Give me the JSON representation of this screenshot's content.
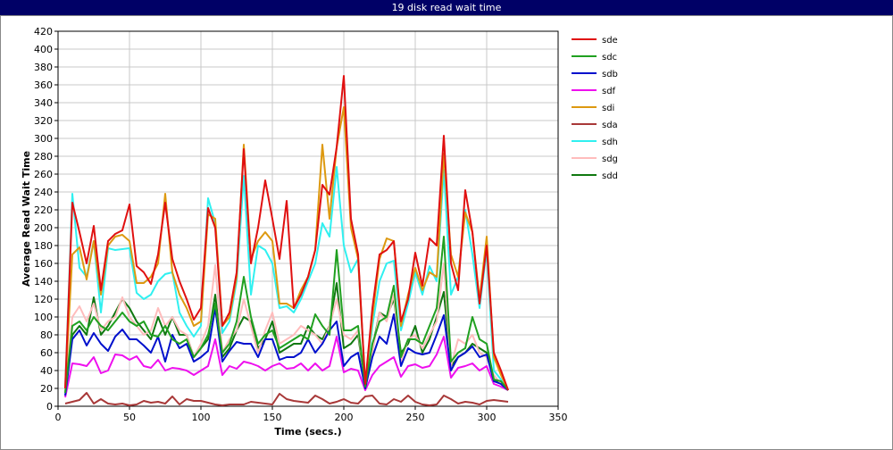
{
  "chart_data": {
    "type": "line",
    "title": "19 disk read wait time",
    "x_label": "Time (secs.)",
    "y_label": "Average Read Wait Time",
    "xlim": [
      0,
      350
    ],
    "xticks": [
      0,
      50,
      100,
      150,
      200,
      250,
      300,
      350
    ],
    "ylim": [
      0,
      420
    ],
    "yticks": [
      0,
      20,
      40,
      60,
      80,
      100,
      120,
      140,
      160,
      180,
      200,
      220,
      240,
      260,
      280,
      300,
      320,
      340,
      360,
      380,
      400,
      420
    ],
    "grid": true,
    "legend": "right",
    "x": [
      5,
      10,
      15,
      20,
      25,
      30,
      35,
      40,
      45,
      50,
      55,
      60,
      65,
      70,
      75,
      80,
      85,
      90,
      95,
      100,
      105,
      110,
      115,
      120,
      125,
      130,
      135,
      140,
      145,
      150,
      155,
      160,
      165,
      170,
      175,
      180,
      185,
      190,
      195,
      200,
      205,
      210,
      215,
      220,
      225,
      230,
      235,
      240,
      245,
      250,
      255,
      260,
      265,
      270,
      275,
      280,
      285,
      290,
      295,
      300,
      305,
      310,
      315
    ],
    "series": [
      {
        "name": "sde",
        "color": "#e01010",
        "values": [
          20,
          228,
          195,
          160,
          202,
          130,
          185,
          193,
          197,
          226,
          157,
          150,
          137,
          170,
          228,
          165,
          140,
          120,
          97,
          110,
          222,
          200,
          90,
          105,
          150,
          288,
          160,
          200,
          253,
          210,
          165,
          230,
          110,
          125,
          145,
          175,
          248,
          237,
          290,
          370,
          210,
          170,
          25,
          110,
          170,
          175,
          185,
          95,
          120,
          172,
          135,
          188,
          180,
          303,
          160,
          130,
          242,
          195,
          115,
          180,
          60,
          40,
          18
        ]
      },
      {
        "name": "sdc",
        "color": "#20a020",
        "values": [
          15,
          90,
          95,
          85,
          100,
          90,
          85,
          95,
          105,
          95,
          90,
          95,
          80,
          78,
          90,
          75,
          70,
          75,
          55,
          65,
          80,
          115,
          60,
          70,
          95,
          145,
          100,
          70,
          80,
          85,
          65,
          70,
          75,
          80,
          75,
          103,
          90,
          80,
          175,
          85,
          85,
          90,
          22,
          70,
          95,
          100,
          135,
          55,
          75,
          75,
          70,
          90,
          110,
          190,
          50,
          60,
          65,
          100,
          75,
          70,
          30,
          28,
          18
        ]
      },
      {
        "name": "sdb",
        "color": "#0010cc",
        "values": [
          12,
          75,
          85,
          68,
          82,
          70,
          62,
          78,
          86,
          75,
          75,
          68,
          60,
          78,
          50,
          80,
          65,
          70,
          50,
          55,
          62,
          110,
          50,
          62,
          72,
          70,
          70,
          55,
          75,
          75,
          52,
          55,
          55,
          60,
          75,
          60,
          70,
          85,
          95,
          45,
          55,
          60,
          20,
          55,
          78,
          70,
          103,
          45,
          65,
          60,
          58,
          60,
          80,
          102,
          40,
          55,
          60,
          67,
          55,
          58,
          28,
          25,
          18
        ]
      },
      {
        "name": "sdf",
        "color": "#ee10ee",
        "values": [
          10,
          48,
          47,
          45,
          55,
          37,
          40,
          58,
          57,
          52,
          56,
          45,
          43,
          52,
          40,
          43,
          42,
          40,
          35,
          40,
          45,
          75,
          35,
          45,
          42,
          50,
          48,
          45,
          40,
          45,
          48,
          42,
          43,
          48,
          40,
          48,
          40,
          45,
          78,
          38,
          42,
          40,
          18,
          35,
          45,
          50,
          55,
          33,
          45,
          47,
          43,
          45,
          58,
          78,
          32,
          43,
          45,
          48,
          40,
          45,
          25,
          22,
          18
        ]
      },
      {
        "name": "sdi",
        "color": "#dd9910",
        "values": [
          20,
          170,
          178,
          142,
          185,
          125,
          180,
          190,
          192,
          185,
          138,
          138,
          145,
          160,
          238,
          150,
          125,
          110,
          90,
          95,
          215,
          210,
          90,
          100,
          145,
          293,
          165,
          185,
          195,
          185,
          115,
          115,
          110,
          130,
          145,
          175,
          293,
          210,
          290,
          335,
          200,
          165,
          25,
          100,
          165,
          188,
          185,
          90,
          125,
          155,
          130,
          150,
          145,
          283,
          170,
          145,
          217,
          195,
          120,
          190,
          55,
          35,
          18
        ]
      },
      {
        "name": "sda",
        "color": "#a83838",
        "values": [
          3,
          5,
          7,
          15,
          3,
          8,
          3,
          2,
          3,
          1,
          2,
          6,
          4,
          5,
          3,
          11,
          2,
          8,
          6,
          6,
          4,
          2,
          1,
          2,
          2,
          2,
          5,
          4,
          3,
          2,
          14,
          8,
          6,
          5,
          4,
          12,
          8,
          3,
          5,
          8,
          4,
          3,
          11,
          12,
          3,
          2,
          8,
          5,
          12,
          5,
          2,
          1,
          2,
          12,
          8,
          3,
          5,
          4,
          2,
          6,
          7,
          6,
          5
        ]
      },
      {
        "name": "sdh",
        "color": "#30f0f0",
        "values": [
          20,
          238,
          155,
          145,
          185,
          105,
          177,
          175,
          176,
          177,
          127,
          120,
          125,
          140,
          148,
          150,
          105,
          90,
          78,
          90,
          233,
          205,
          82,
          95,
          140,
          258,
          125,
          180,
          175,
          160,
          110,
          112,
          105,
          120,
          140,
          160,
          205,
          190,
          268,
          180,
          150,
          165,
          22,
          90,
          140,
          160,
          163,
          85,
          115,
          150,
          125,
          157,
          140,
          265,
          125,
          145,
          220,
          170,
          110,
          175,
          40,
          30,
          18
        ]
      },
      {
        "name": "sdg",
        "color": "#ffbcbc",
        "values": [
          15,
          100,
          112,
          95,
          115,
          85,
          95,
          100,
          122,
          100,
          90,
          80,
          85,
          110,
          90,
          100,
          85,
          80,
          55,
          70,
          90,
          158,
          60,
          75,
          85,
          120,
          90,
          60,
          85,
          105,
          70,
          75,
          80,
          90,
          85,
          80,
          70,
          90,
          120,
          80,
          75,
          85,
          22,
          60,
          105,
          95,
          125,
          50,
          75,
          80,
          65,
          80,
          95,
          160,
          45,
          75,
          70,
          80,
          60,
          55,
          35,
          25,
          18
        ]
      },
      {
        "name": "sdd",
        "color": "#107810",
        "values": [
          15,
          80,
          90,
          80,
          122,
          80,
          90,
          105,
          120,
          110,
          95,
          85,
          75,
          100,
          80,
          100,
          80,
          80,
          55,
          65,
          75,
          125,
          55,
          65,
          85,
          100,
          95,
          65,
          75,
          95,
          60,
          65,
          70,
          70,
          90,
          80,
          75,
          90,
          138,
          65,
          70,
          80,
          22,
          65,
          105,
          100,
          120,
          60,
          70,
          90,
          60,
          75,
          100,
          128,
          45,
          55,
          60,
          70,
          65,
          60,
          30,
          25,
          18
        ]
      }
    ]
  }
}
